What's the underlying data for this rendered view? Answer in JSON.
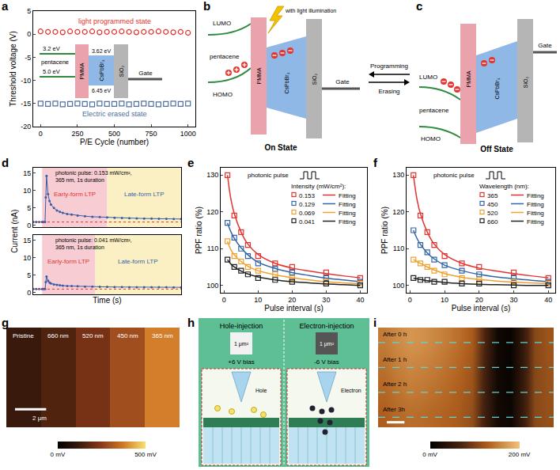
{
  "chart_data": [
    {
      "type": "scatter",
      "panel": "a",
      "xlabel": "P/E Cycle (number)",
      "ylabel": "Threshold voltage (V)",
      "xlim": [
        -50,
        1050
      ],
      "xticks": [
        0,
        250,
        500,
        750,
        1000
      ],
      "ylim": [
        -20,
        5
      ],
      "yticks": [
        -20,
        -15,
        -10,
        -5,
        0,
        5
      ],
      "series": [
        {
          "name": "light programmed state",
          "color": "#e3342f",
          "marker": "circle",
          "x": [
            0,
            50,
            100,
            150,
            200,
            250,
            300,
            350,
            400,
            450,
            500,
            550,
            600,
            650,
            700,
            750,
            800,
            850,
            900,
            950,
            1000
          ],
          "values": [
            0.6,
            0.5,
            0.5,
            0.4,
            0.6,
            0.5,
            0.5,
            0.6,
            0.4,
            0.5,
            0.5,
            0.6,
            0.5,
            0.4,
            0.5,
            0.5,
            0.6,
            0.5,
            0.4,
            0.5,
            0.3
          ]
        },
        {
          "name": "Electric erased state",
          "color": "#4f6fa0",
          "marker": "square",
          "x": [
            0,
            50,
            100,
            150,
            200,
            250,
            300,
            350,
            400,
            450,
            500,
            550,
            600,
            650,
            700,
            750,
            800,
            850,
            900,
            950,
            1000
          ],
          "values": [
            -15.0,
            -15.1,
            -15.0,
            -15.2,
            -15.1,
            -15.0,
            -15.1,
            -15.2,
            -15.0,
            -15.1,
            -15.1,
            -15.0,
            -15.2,
            -15.1,
            -15.0,
            -15.1,
            -15.2,
            -15.1,
            -15.0,
            -15.1,
            -15.0
          ]
        }
      ]
    },
    {
      "type": "line",
      "panel": "d",
      "xlabel": "Time (s)",
      "ylabel": "Current (nA)",
      "tick_labels": "y",
      "subplots": [
        {
          "annotation": "photonic pulse: 0.153 mW/cm², 365 nm, 1s duration",
          "xlim": [
            0,
            100
          ],
          "ylim": [
            -0.5,
            16.5
          ],
          "yticks": [
            0,
            5,
            10,
            15
          ],
          "color": "#3b5ba5",
          "marker": "circle",
          "baseline": 1,
          "x": [
            0,
            2,
            4,
            6,
            7,
            8,
            8.5,
            9,
            10,
            11,
            12,
            14,
            16,
            18,
            20,
            23,
            26,
            30,
            35,
            40,
            45,
            50,
            55,
            60,
            65,
            70,
            75,
            80,
            85,
            90,
            95,
            100
          ],
          "values": [
            1,
            1,
            1,
            1,
            1,
            1,
            8,
            14.2,
            9,
            7,
            6,
            5,
            4.3,
            3.9,
            3.6,
            3.3,
            3.1,
            2.85,
            2.65,
            2.5,
            2.4,
            2.3,
            2.22,
            2.15,
            2.1,
            2.05,
            2,
            1.97,
            1.94,
            1.9,
            1.88,
            1.85
          ],
          "regions": [
            {
              "label": "Early-form LTP",
              "from": 6,
              "to": 50,
              "color": "#f7cdd3"
            },
            {
              "label": "Late-form LTP",
              "from": 50,
              "to": 100,
              "color": "#fbf0c4"
            }
          ]
        },
        {
          "annotation": "photonic pulse: 0.041 mW/cm², 365 nm, 1s duration",
          "xlim": [
            0,
            100
          ],
          "ylim": [
            -0.5,
            16.5
          ],
          "yticks": [
            0,
            5,
            10,
            15
          ],
          "color": "#3b5ba5",
          "marker": "circle",
          "baseline": 1,
          "x": [
            0,
            2,
            4,
            6,
            7,
            8,
            8.5,
            9,
            10,
            11,
            12,
            14,
            16,
            18,
            20,
            23,
            26,
            30,
            35,
            40,
            45,
            50,
            55,
            60,
            65,
            70,
            75,
            80,
            85,
            90,
            95,
            100
          ],
          "values": [
            1,
            1,
            1,
            1,
            1,
            1,
            3,
            4.6,
            3.4,
            2.9,
            2.6,
            2.35,
            2.2,
            2.1,
            2,
            1.9,
            1.85,
            1.8,
            1.72,
            1.68,
            1.65,
            1.62,
            1.6,
            1.58,
            1.56,
            1.55,
            1.54,
            1.53,
            1.52,
            1.51,
            1.5,
            1.5
          ],
          "regions": [
            {
              "label": "Early-form LTP",
              "from": 6,
              "to": 42,
              "color": "#f7cdd3"
            },
            {
              "label": "Late-form LTP",
              "from": 42,
              "to": 100,
              "color": "#fbf0c4"
            }
          ]
        }
      ]
    },
    {
      "type": "scatter",
      "panel": "e",
      "xlabel": "Pulse interval (s)",
      "ylabel": "PPF ratio (%)",
      "xlim": [
        -1,
        42
      ],
      "xticks": [
        0,
        10,
        20,
        30,
        40
      ],
      "ylim": [
        98,
        132
      ],
      "yticks": [
        100,
        110,
        120,
        130
      ],
      "legend": "top right",
      "legend_title": "Intensity (mW/cm²):",
      "annotation": "photonic pulse",
      "series": [
        {
          "name": "0.153",
          "color": "#e3342f",
          "marker": "square",
          "x": [
            1,
            3,
            5,
            7,
            10,
            15,
            20,
            30,
            40
          ],
          "values": [
            130,
            119,
            114.5,
            111,
            108,
            106,
            105,
            103.5,
            102
          ]
        },
        {
          "name": "Fitting",
          "type": "line",
          "color": "#e3342f",
          "x": [
            1,
            2,
            3,
            5,
            7,
            10,
            15,
            20,
            25,
            30,
            35,
            40
          ],
          "values": [
            130,
            123.5,
            119.5,
            114.5,
            111.2,
            108.4,
            106,
            104.7,
            103.9,
            103.2,
            102.6,
            102.1
          ]
        },
        {
          "name": "0.129",
          "color": "#3465a4",
          "marker": "square",
          "x": [
            1,
            3,
            5,
            7,
            10,
            15,
            20,
            30,
            40
          ],
          "values": [
            117,
            113,
            110,
            108,
            106,
            104.5,
            103.5,
            102,
            101
          ]
        },
        {
          "name": "Fitting",
          "type": "line",
          "color": "#3465a4",
          "x": [
            1,
            2,
            3,
            5,
            7,
            10,
            15,
            20,
            25,
            30,
            35,
            40
          ],
          "values": [
            117,
            114.6,
            112.8,
            110.2,
            108.3,
            106.3,
            104.6,
            103.5,
            102.7,
            102,
            101.5,
            101
          ]
        },
        {
          "name": "0.069",
          "color": "#f0a030",
          "marker": "square",
          "x": [
            1,
            3,
            5,
            7,
            10,
            15,
            20,
            30,
            40
          ],
          "values": [
            112,
            108,
            106.5,
            105,
            104,
            103,
            102,
            101,
            100.5
          ]
        },
        {
          "name": "Fitting",
          "type": "line",
          "color": "#f0a030",
          "x": [
            1,
            2,
            3,
            5,
            7,
            10,
            15,
            20,
            25,
            30,
            35,
            40
          ],
          "values": [
            112,
            109.7,
            108.3,
            106.5,
            105.2,
            104,
            102.9,
            102.1,
            101.5,
            101,
            100.7,
            100.5
          ]
        },
        {
          "name": "0.041",
          "color": "#222222",
          "marker": "square",
          "x": [
            1,
            3,
            5,
            7,
            10,
            15,
            20,
            30,
            40
          ],
          "values": [
            107,
            105,
            104,
            103,
            102,
            101.5,
            101,
            100.5,
            100
          ]
        },
        {
          "name": "Fitting",
          "type": "line",
          "color": "#222222",
          "x": [
            1,
            2,
            3,
            5,
            7,
            10,
            15,
            20,
            25,
            30,
            35,
            40
          ],
          "values": [
            107,
            105.8,
            105,
            103.9,
            103.1,
            102.3,
            101.5,
            101,
            100.7,
            100.4,
            100.2,
            100
          ]
        }
      ]
    },
    {
      "type": "scatter",
      "panel": "f",
      "xlabel": "Pulse interval (s)",
      "ylabel": "PPF ratio (%)",
      "xlim": [
        -1,
        42
      ],
      "xticks": [
        0,
        10,
        20,
        30,
        40
      ],
      "ylim": [
        98,
        132
      ],
      "yticks": [
        100,
        110,
        120,
        130
      ],
      "legend": "top right",
      "legend_title": "Wavelength (nm):",
      "annotation": "photonic pulse",
      "series": [
        {
          "name": "365",
          "color": "#e3342f",
          "marker": "square",
          "x": [
            1,
            3,
            5,
            7,
            10,
            15,
            20,
            30,
            40
          ],
          "values": [
            130,
            119,
            114.5,
            111,
            108,
            106,
            105,
            103.5,
            102
          ]
        },
        {
          "name": "Fitting",
          "type": "line",
          "color": "#e3342f",
          "x": [
            1,
            2,
            3,
            5,
            7,
            10,
            15,
            20,
            25,
            30,
            35,
            40
          ],
          "values": [
            130,
            123.5,
            119.5,
            114.5,
            111.2,
            108.4,
            106,
            104.7,
            103.9,
            103.2,
            102.6,
            102.1
          ]
        },
        {
          "name": "450",
          "color": "#3465a4",
          "marker": "square",
          "x": [
            1,
            3,
            5,
            7,
            10,
            15,
            20,
            30,
            40
          ],
          "values": [
            115,
            111,
            109,
            107,
            105.5,
            104,
            103,
            102,
            101
          ]
        },
        {
          "name": "Fitting",
          "type": "line",
          "color": "#3465a4",
          "x": [
            1,
            2,
            3,
            5,
            7,
            10,
            15,
            20,
            25,
            30,
            35,
            40
          ],
          "values": [
            115,
            112.8,
            111.2,
            108.8,
            107.2,
            105.5,
            104,
            103,
            102.3,
            101.8,
            101.4,
            101
          ]
        },
        {
          "name": "520",
          "color": "#f0a030",
          "marker": "square",
          "x": [
            1,
            3,
            5,
            7,
            10,
            15,
            20,
            30,
            40
          ],
          "values": [
            107,
            106,
            105,
            104,
            103,
            102,
            101.5,
            101,
            100.5
          ]
        },
        {
          "name": "Fitting",
          "type": "line",
          "color": "#f0a030",
          "x": [
            1,
            2,
            3,
            5,
            7,
            10,
            15,
            20,
            25,
            30,
            35,
            40
          ],
          "values": [
            107,
            106.5,
            106,
            105,
            104.2,
            103.2,
            102.2,
            101.6,
            101.2,
            100.9,
            100.7,
            100.5
          ]
        },
        {
          "name": "660",
          "color": "#222222",
          "marker": "square",
          "x": [
            1,
            3,
            5,
            7,
            10,
            15,
            20,
            30,
            40
          ],
          "values": [
            102,
            101.5,
            101.5,
            101,
            101,
            100.5,
            100.5,
            100,
            100
          ]
        },
        {
          "name": "Fitting",
          "type": "line",
          "color": "#222222",
          "x": [
            1,
            2,
            3,
            5,
            7,
            10,
            15,
            20,
            25,
            30,
            35,
            40
          ],
          "values": [
            102,
            101.8,
            101.6,
            101.3,
            101.1,
            100.8,
            100.5,
            100.3,
            100.2,
            100.1,
            100,
            100
          ]
        }
      ]
    },
    {
      "type": "heatmap",
      "panel": "g",
      "tick_labels": false,
      "categories": [
        "Pristine",
        "660 nm",
        "520 nm",
        "450 nm",
        "365 nm"
      ],
      "values": [
        120,
        160,
        220,
        290,
        380
      ],
      "scale_bar": "2 μm",
      "colorbar": {
        "range": [
          0,
          500
        ],
        "ticks": [
          {
            "value": 0,
            "label": "0 mV"
          },
          {
            "value": 500,
            "label": "500 mV"
          }
        ]
      }
    },
    {
      "type": "heatmap",
      "panel": "i",
      "tick_labels": false,
      "rows": [
        "After 0 h",
        "After 1 h",
        "After 2 h",
        "After 3h"
      ],
      "values": [
        [
          150,
          160,
          168,
          165,
          158,
          150,
          140,
          125,
          70,
          15,
          8,
          45,
          105,
          118
        ],
        [
          142,
          152,
          158,
          155,
          150,
          143,
          133,
          120,
          65,
          15,
          8,
          45,
          105,
          116
        ],
        [
          135,
          144,
          150,
          147,
          142,
          136,
          128,
          116,
          62,
          16,
          10,
          48,
          106,
          115
        ],
        [
          128,
          136,
          140,
          138,
          134,
          130,
          124,
          112,
          60,
          18,
          12,
          50,
          106,
          114
        ]
      ],
      "colorbar": {
        "range": [
          0,
          200
        ],
        "ticks": [
          {
            "value": 0,
            "label": "0 mV"
          },
          {
            "value": 200,
            "label": "200 mV"
          }
        ]
      }
    }
  ],
  "diagrams": {
    "a_inset": {
      "semiconductor": "pentacene",
      "lumo": "3.2 eV",
      "homo": "5.0 eV",
      "layers": [
        "PMMA",
        "CsPbBr₃",
        "SiO₂"
      ],
      "levels": [
        "3.62 eV",
        "6.45 eV"
      ],
      "gate": "Gate"
    },
    "b": {
      "panel": "b",
      "state": "On State",
      "lumo": "LUMO",
      "homo": "HOMO",
      "semiconductor": "pentacene",
      "layers": [
        "PMMA",
        "CsPbBr₃",
        "SiO₂"
      ],
      "gate": "Gate",
      "light": "with light illumination"
    },
    "c": {
      "panel": "c",
      "state": "Off State",
      "lumo": "LUMO",
      "homo": "HOMO",
      "semiconductor": "pentacene",
      "layers": [
        "PMMA",
        "CsPbBr₃",
        "SiO₂"
      ],
      "gate": "Gate"
    },
    "transitions": {
      "programming": "Programming",
      "erasing": "Erasing"
    },
    "h": {
      "panel": "h",
      "columns": [
        {
          "title": "Hole-injection",
          "area": "1 μm²",
          "bias": "+6 V bias",
          "carrier": "Hole"
        },
        {
          "title": "Electron-injection",
          "area": "1 μm²",
          "bias": "-6 V bias",
          "carrier": "Electron"
        }
      ]
    }
  }
}
